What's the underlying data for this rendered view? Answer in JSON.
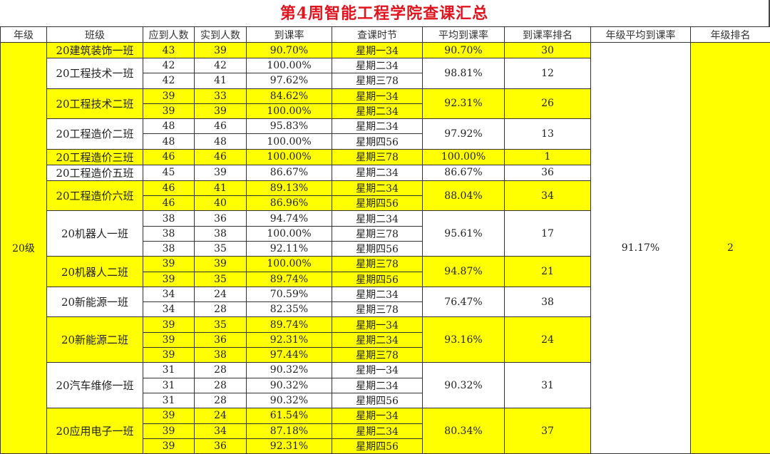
{
  "title": "第4周智能工程学院查课汇总",
  "colors": {
    "highlight": "#ffff00",
    "title": "#e0141e"
  },
  "headers": [
    "年级",
    "班级",
    "应到人数",
    "实到人数",
    "到课率",
    "查课时节",
    "平均到课率",
    "到课率排名",
    "年级平均到课率",
    "年级排名"
  ],
  "grade": {
    "name": "20级",
    "avg_rate": "91.17%",
    "rank": "2"
  },
  "classes": [
    {
      "name": "20建筑装饰一班",
      "highlight": true,
      "avg": "90.70%",
      "rank": "30",
      "rows": [
        [
          "43",
          "39",
          "90.70%",
          "星期一34"
        ]
      ]
    },
    {
      "name": "20工程技术一班",
      "highlight": false,
      "avg": "98.81%",
      "rank": "12",
      "rows": [
        [
          "42",
          "42",
          "100.00%",
          "星期二34"
        ],
        [
          "42",
          "41",
          "97.62%",
          "星期三78"
        ]
      ]
    },
    {
      "name": "20工程技术二班",
      "highlight": true,
      "avg": "92.31%",
      "rank": "26",
      "rows": [
        [
          "39",
          "33",
          "84.62%",
          "星期一34"
        ],
        [
          "39",
          "39",
          "100.00%",
          "星期二34"
        ]
      ]
    },
    {
      "name": "20工程造价二班",
      "highlight": false,
      "avg": "97.92%",
      "rank": "13",
      "rows": [
        [
          "48",
          "46",
          "95.83%",
          "星期二34"
        ],
        [
          "48",
          "48",
          "100.00%",
          "星期四56"
        ]
      ]
    },
    {
      "name": "20工程造价三班",
      "highlight": true,
      "avg": "100.00%",
      "rank": "1",
      "rows": [
        [
          "46",
          "46",
          "100.00%",
          "星期三78"
        ]
      ]
    },
    {
      "name": "20工程造价五班",
      "highlight": false,
      "avg": "86.67%",
      "rank": "36",
      "rows": [
        [
          "45",
          "39",
          "86.67%",
          "星期二34"
        ]
      ]
    },
    {
      "name": "20工程造价六班",
      "highlight": true,
      "avg": "88.04%",
      "rank": "34",
      "rows": [
        [
          "46",
          "41",
          "89.13%",
          "星期二34"
        ],
        [
          "46",
          "40",
          "86.96%",
          "星期四56"
        ]
      ]
    },
    {
      "name": "20机器人一班",
      "highlight": false,
      "avg": "95.61%",
      "rank": "17",
      "rows": [
        [
          "38",
          "36",
          "94.74%",
          "星期二34"
        ],
        [
          "38",
          "38",
          "100.00%",
          "星期三78"
        ],
        [
          "38",
          "35",
          "92.11%",
          "星期四56"
        ]
      ]
    },
    {
      "name": "20机器人二班",
      "highlight": true,
      "avg": "94.87%",
      "rank": "21",
      "rows": [
        [
          "39",
          "39",
          "100.00%",
          "星期三78"
        ],
        [
          "39",
          "35",
          "89.74%",
          "星期四56"
        ]
      ]
    },
    {
      "name": "20新能源一班",
      "highlight": false,
      "avg": "76.47%",
      "rank": "38",
      "rows": [
        [
          "34",
          "24",
          "70.59%",
          "星期二34"
        ],
        [
          "34",
          "28",
          "82.35%",
          "星期三78"
        ]
      ]
    },
    {
      "name": "20新能源二班",
      "highlight": true,
      "avg": "93.16%",
      "rank": "24",
      "rows": [
        [
          "39",
          "35",
          "89.74%",
          "星期一34"
        ],
        [
          "39",
          "36",
          "92.31%",
          "星期二34"
        ],
        [
          "39",
          "38",
          "97.44%",
          "星期三78"
        ]
      ]
    },
    {
      "name": "20汽车维修一班",
      "highlight": false,
      "avg": "90.32%",
      "rank": "31",
      "rows": [
        [
          "31",
          "28",
          "90.32%",
          "星期一34"
        ],
        [
          "31",
          "28",
          "90.32%",
          "星期二34"
        ],
        [
          "31",
          "28",
          "90.32%",
          "星期四56"
        ]
      ]
    },
    {
      "name": "20应用电子一班",
      "highlight": true,
      "avg": "80.34%",
      "rank": "37",
      "rows": [
        [
          "39",
          "24",
          "61.54%",
          "星期一34"
        ],
        [
          "39",
          "34",
          "87.18%",
          "星期二34"
        ],
        [
          "39",
          "36",
          "92.31%",
          "星期四56"
        ]
      ]
    }
  ]
}
